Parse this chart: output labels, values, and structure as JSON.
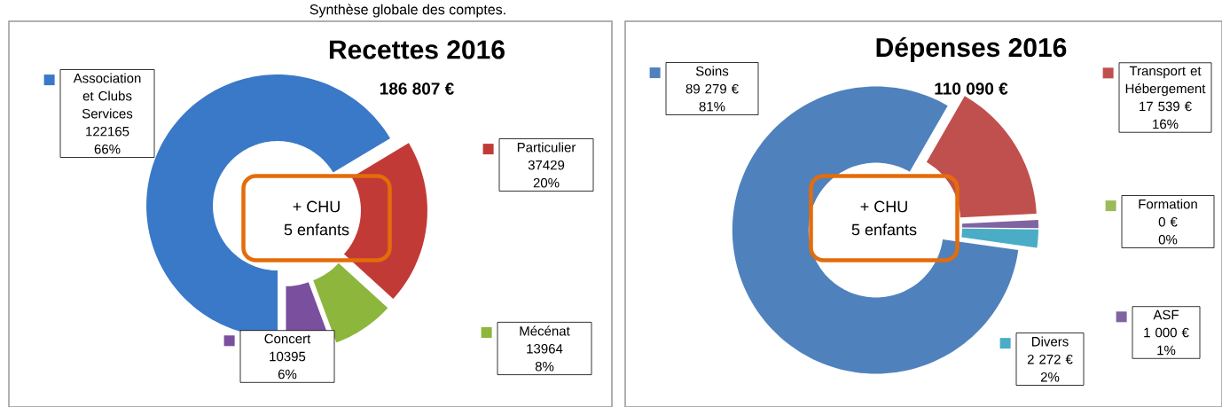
{
  "chart_data": [
    {
      "type": "donut",
      "title": "Recettes 2016",
      "subtitle": "186 807 €",
      "categories": [
        "Association et Clubs Services",
        "Particulier",
        "Mécénat",
        "Concert"
      ],
      "values": [
        122165,
        37429,
        13964,
        10395
      ],
      "value_labels": [
        "122165",
        "37429",
        "13964",
        "10395"
      ],
      "colors": [
        "#3a78c8",
        "#c23a36",
        "#8cb63c",
        "#7a4f9e"
      ],
      "legend": "right",
      "annotations": [
        {
          "text": "66%",
          "x": "Association et Clubs Services"
        },
        {
          "text": "20%",
          "x": "Particulier"
        },
        {
          "text": "8%",
          "x": "Mécénat"
        },
        {
          "text": "6%",
          "x": "Concert"
        },
        "+ CHU",
        "5 enfants",
        "Synthèse globale des comptes."
      ]
    },
    {
      "type": "donut",
      "title": "Dépenses 2016",
      "subtitle": "110 090 €",
      "categories": [
        "Soins",
        "Transport et Hébergement",
        "Formation",
        "ASF",
        "Divers"
      ],
      "values": [
        89279,
        17539,
        0,
        1000,
        2272
      ],
      "value_labels": [
        "89 279 €",
        "17 539 €",
        "0 €",
        "1 000 €",
        "2 272 €"
      ],
      "colors": [
        "#4f81bd",
        "#c0504d",
        "#9bbb59",
        "#8064a2",
        "#4bacc6"
      ],
      "legend": "right",
      "annotations": [
        {
          "text": "81%",
          "x": "Soins"
        },
        {
          "text": "16%",
          "x": "Transport et Hébergement"
        },
        {
          "text": "0%",
          "x": "Formation"
        },
        {
          "text": "1%",
          "x": "ASF"
        },
        {
          "text": "2%",
          "x": "Divers"
        },
        "+ CHU",
        "5 enfants"
      ]
    }
  ]
}
